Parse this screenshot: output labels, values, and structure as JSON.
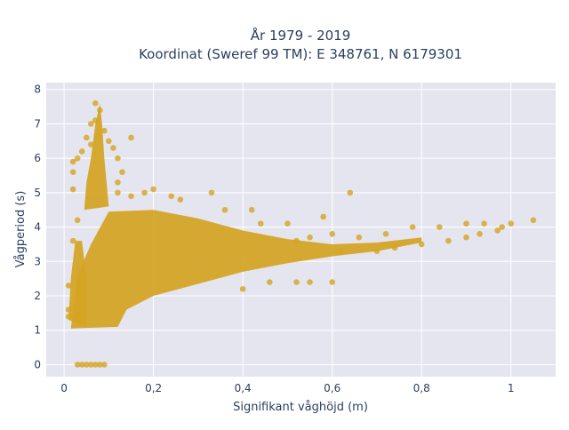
{
  "chart_data": {
    "type": "scatter",
    "title_line1": "År 1979 - 2019",
    "title_line2": "Koordinat (Sweref 99 TM): E 348761, N 6179301",
    "xlabel": "Signifikant våghöjd (m)",
    "ylabel": "Vågperiod (s)",
    "xlim": [
      -0.04,
      1.1
    ],
    "ylim": [
      -0.35,
      8.2
    ],
    "x_ticks": [
      0,
      0.2,
      0.4,
      0.6,
      0.8,
      1
    ],
    "x_tick_labels": [
      "0",
      "0,2",
      "0,4",
      "0,6",
      "0,8",
      "1"
    ],
    "y_ticks": [
      0,
      1,
      2,
      3,
      4,
      5,
      6,
      7,
      8
    ],
    "y_tick_labels": [
      "0",
      "1",
      "2",
      "3",
      "4",
      "5",
      "6",
      "7",
      "8"
    ],
    "grid": true,
    "marker_color": "#d4a421",
    "plot_bg": "#e5e5f0",
    "grid_color": "#ffffff",
    "series": [
      {
        "points": [
          [
            0.03,
            0
          ],
          [
            0.04,
            0
          ],
          [
            0.05,
            0
          ],
          [
            0.06,
            0
          ],
          [
            0.07,
            0
          ],
          [
            0.08,
            0
          ],
          [
            0.09,
            0
          ],
          [
            0.07,
            7.6
          ],
          [
            0.08,
            7.4
          ],
          [
            0.07,
            7.1
          ],
          [
            0.06,
            7.0
          ],
          [
            0.05,
            6.6
          ],
          [
            0.06,
            6.4
          ],
          [
            0.04,
            6.2
          ],
          [
            0.03,
            6.0
          ],
          [
            0.02,
            5.9
          ],
          [
            0.02,
            5.6
          ],
          [
            0.02,
            5.1
          ],
          [
            0.03,
            4.2
          ],
          [
            0.02,
            3.6
          ],
          [
            0.01,
            2.3
          ],
          [
            0.01,
            1.6
          ],
          [
            0.01,
            1.4
          ],
          [
            0.09,
            6.8
          ],
          [
            0.1,
            6.5
          ],
          [
            0.11,
            6.3
          ],
          [
            0.12,
            6.0
          ],
          [
            0.13,
            5.6
          ],
          [
            0.15,
            6.6
          ],
          [
            0.12,
            5.3
          ],
          [
            0.12,
            5.0
          ],
          [
            0.15,
            4.9
          ],
          [
            0.18,
            5.0
          ],
          [
            0.2,
            5.1
          ],
          [
            0.24,
            4.9
          ],
          [
            0.26,
            4.8
          ],
          [
            0.33,
            5.0
          ],
          [
            0.36,
            4.5
          ],
          [
            0.42,
            4.5
          ],
          [
            0.5,
            4.1
          ],
          [
            0.58,
            4.3
          ],
          [
            0.64,
            5.0
          ],
          [
            0.44,
            4.1
          ],
          [
            0.52,
            3.6
          ],
          [
            0.55,
            3.7
          ],
          [
            0.6,
            3.8
          ],
          [
            0.66,
            3.7
          ],
          [
            0.72,
            3.8
          ],
          [
            0.78,
            4.0
          ],
          [
            0.84,
            4.0
          ],
          [
            0.9,
            4.1
          ],
          [
            0.94,
            4.1
          ],
          [
            0.98,
            4.0
          ],
          [
            1.0,
            4.1
          ],
          [
            1.05,
            4.2
          ],
          [
            0.4,
            2.2
          ],
          [
            0.46,
            2.4
          ],
          [
            0.52,
            2.4
          ],
          [
            0.55,
            2.4
          ],
          [
            0.6,
            2.4
          ],
          [
            0.62,
            3.3
          ],
          [
            0.7,
            3.3
          ],
          [
            0.74,
            3.4
          ],
          [
            0.8,
            3.5
          ],
          [
            0.86,
            3.6
          ],
          [
            0.9,
            3.7
          ],
          [
            0.93,
            3.8
          ],
          [
            0.97,
            3.9
          ]
        ]
      }
    ]
  }
}
